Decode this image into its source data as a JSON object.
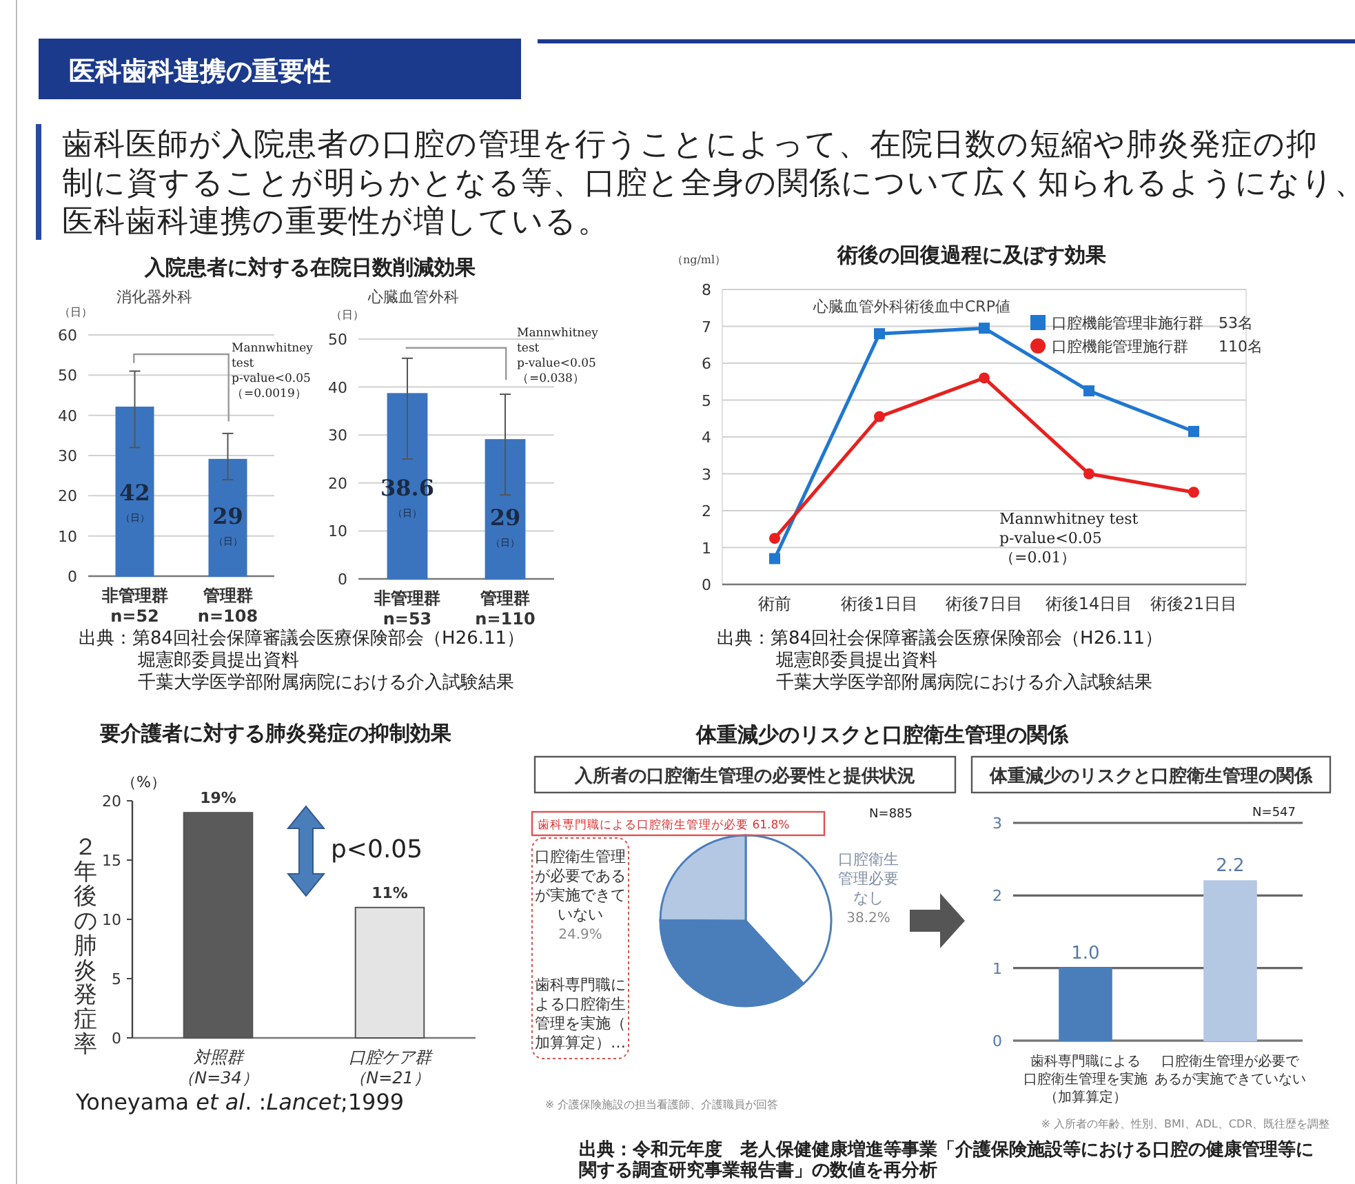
{
  "chart_data": [
    {
      "type": "other",
      "title": "医科歯科連携の重要性",
      "annotations": [
        "歯科医師が入院患者の口腔の管理を行うことによって、在院日数の短縮や肺炎発症の抑制に資することが明らかとなる等、口腔と全身の関係について広く知られるようになり、医科歯科連携の重要性が増している。"
      ]
    },
    {
      "type": "bar",
      "title": "入院患者に対する在院日数削減効果",
      "subtitle": "消化器外科",
      "ylabel": "（日）",
      "categories": [
        "非管理群\nn=52",
        "管理群\nn=108"
      ],
      "values": [
        42,
        29
      ],
      "errors": [
        [
          32,
          51
        ],
        [
          24,
          35.5
        ]
      ],
      "color": "#3b74be",
      "ylim": [
        0,
        60
      ],
      "yticks": [
        0,
        10,
        20,
        30,
        40,
        50,
        60
      ],
      "grid": "y",
      "data_labels": true,
      "annotations": [
        "Mannwhitney\ntest\np-value<0.05\n（=0.0019）",
        "出典：第84回社会保障審議会医療保険部会（H26.11）",
        "堀憲郎委員提出資料",
        "千葉大学医学部附属病院における介入試験結果"
      ]
    },
    {
      "type": "bar",
      "subtitle": "心臓血管外科",
      "ylabel": "（日）",
      "categories": [
        "非管理群\nn=53",
        "管理群\nn=110"
      ],
      "values": [
        38.6,
        29
      ],
      "errors": [
        [
          25,
          46
        ],
        [
          17.5,
          38.5
        ]
      ],
      "color": "#3b74be",
      "ylim": [
        0,
        50
      ],
      "yticks": [
        0,
        10,
        20,
        30,
        40,
        50
      ],
      "grid": "y",
      "data_labels": true,
      "annotations": [
        "Mannwhitney\ntest\np-value<0.05\n（=0.038）"
      ]
    },
    {
      "type": "line",
      "title": "術後の回復過程に及ぼす効果",
      "subtitle": "心臓血管外科術後血中CRP値",
      "ylabel": "（ng/ml）",
      "categories": [
        "術前",
        "術後1日目",
        "術後7日目",
        "術後14日目",
        "術後21日目"
      ],
      "series": [
        {
          "name": "口腔機能管理非施行群　53名",
          "color": "#1f77d0",
          "marker": "square",
          "values": [
            0.7,
            6.8,
            6.95,
            5.25,
            4.15
          ]
        },
        {
          "name": "口腔機能管理施行群　　110名",
          "color": "#e8201f",
          "marker": "circle",
          "values": [
            1.25,
            4.55,
            5.6,
            3.0,
            2.5
          ]
        }
      ],
      "ylim": [
        0,
        8
      ],
      "yticks": [
        0,
        1,
        2,
        3,
        4,
        5,
        6,
        7,
        8
      ],
      "grid": "y",
      "legend": "top right",
      "annotations": [
        "Mannwhitney test\np-value<0.05\n（=0.01）",
        "出典：第84回社会保障審議会医療保険部会（H26.11）",
        "堀憲郎委員提出資料",
        "千葉大学医学部附属病院における介入試験結果"
      ]
    },
    {
      "type": "bar",
      "title": "要介護者に対する肺炎発症の抑制効果",
      "ylabel": "２年後の肺炎発症率",
      "categories": [
        "対照群（N=34）",
        "口腔ケア群（N=21）"
      ],
      "values": [
        19,
        11
      ],
      "value_labels": [
        "19%",
        "11%"
      ],
      "colors": [
        "#5a5a5a",
        "#e4e4e4"
      ],
      "ylim": [
        0,
        20
      ],
      "yticks": [
        0,
        5,
        10,
        15,
        20
      ],
      "annotations": [
        "（%）",
        "p<0.05",
        "Yoneyama *et al*. :*Lancet*;1999"
      ]
    },
    {
      "type": "pie",
      "title": "体重減少のリスクと口腔衛生管理の関係",
      "subtitle": "入所者の口腔衛生管理の必要性と提供状況",
      "categories": [
        "口腔衛生管理必要なし",
        "歯科専門職による口腔衛生管理を実施（加算算定）…",
        "口腔衛生管理が必要であるが実施できていない"
      ],
      "values": [
        38.2,
        36.9,
        24.9
      ],
      "value_labels": [
        "38.2%",
        null,
        "24.9%"
      ],
      "colors": [
        "#ffffff",
        "#4a7ebb",
        "#b4c8e4"
      ],
      "annotations": [
        "N=885",
        "歯科専門職による口腔衛生管理が必要 61.8%",
        "※ 介護保険施設の担当看護師、介護職員が回答"
      ]
    },
    {
      "type": "bar",
      "subtitle": "体重減少のリスクと口腔衛生管理の関係",
      "categories": [
        "歯科専門職による口腔衛生管理を実施（加算算定）",
        "口腔衛生管理が必要であるが実施できていない"
      ],
      "values": [
        1.0,
        2.2
      ],
      "value_labels": [
        "1.0",
        "2.2"
      ],
      "colors": [
        "#4a7ebb",
        "#b4c8e4"
      ],
      "ylim": [
        0,
        3
      ],
      "yticks": [
        0,
        1,
        2,
        3
      ],
      "grid": "y",
      "annotations": [
        "N=547",
        "※ 入所者の年齢、性別、BMI、ADL、CDR、既往歴を調整",
        "出典：令和元年度　老人保健健康増進等事業「介護保険施設等における口腔の健康管理等に関する調査研究事業報告書」の数値を再分析"
      ]
    }
  ]
}
